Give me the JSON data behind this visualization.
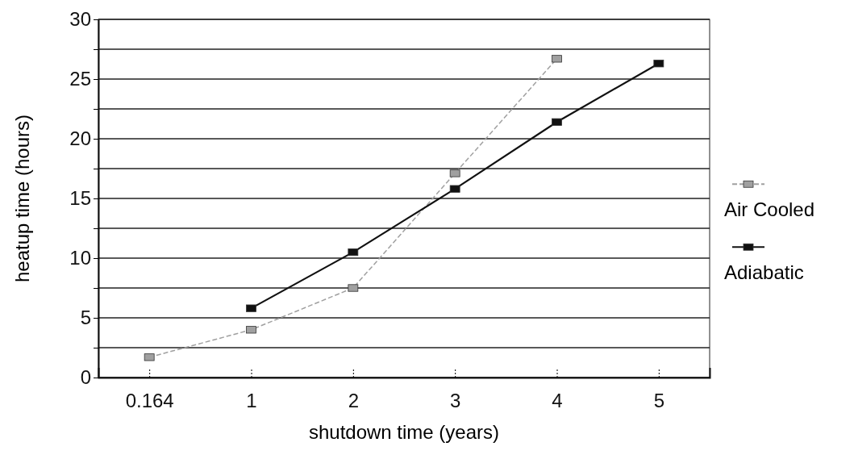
{
  "chart_data": {
    "type": "line",
    "xlabel": "shutdown time (years)",
    "ylabel": "heatup time (hours)",
    "categories": [
      "0.164",
      "1",
      "2",
      "3",
      "4",
      "5"
    ],
    "series": [
      {
        "name": "Air Cooled",
        "color": "#a0a0a0",
        "values": [
          1.7,
          4.0,
          7.5,
          17.1,
          26.7,
          null
        ],
        "line_style": "dashed"
      },
      {
        "name": "Adiabatic",
        "color": "#111111",
        "values": [
          null,
          5.8,
          10.5,
          15.8,
          21.4,
          26.3
        ],
        "line_style": "solid"
      }
    ],
    "ylim": [
      0,
      30
    ],
    "yticks": [
      0,
      {
        "value": 2.5,
        "label": null
      },
      5,
      {
        "value": 7.5,
        "label": null
      },
      10,
      {
        "value": 12.5,
        "label": null
      },
      15,
      {
        "value": 17.5,
        "label": null
      },
      20,
      {
        "value": 22.5,
        "label": null
      },
      25,
      {
        "value": 27.5,
        "label": null
      },
      30
    ],
    "grid": "y",
    "legend": "right",
    "marker": "square"
  }
}
